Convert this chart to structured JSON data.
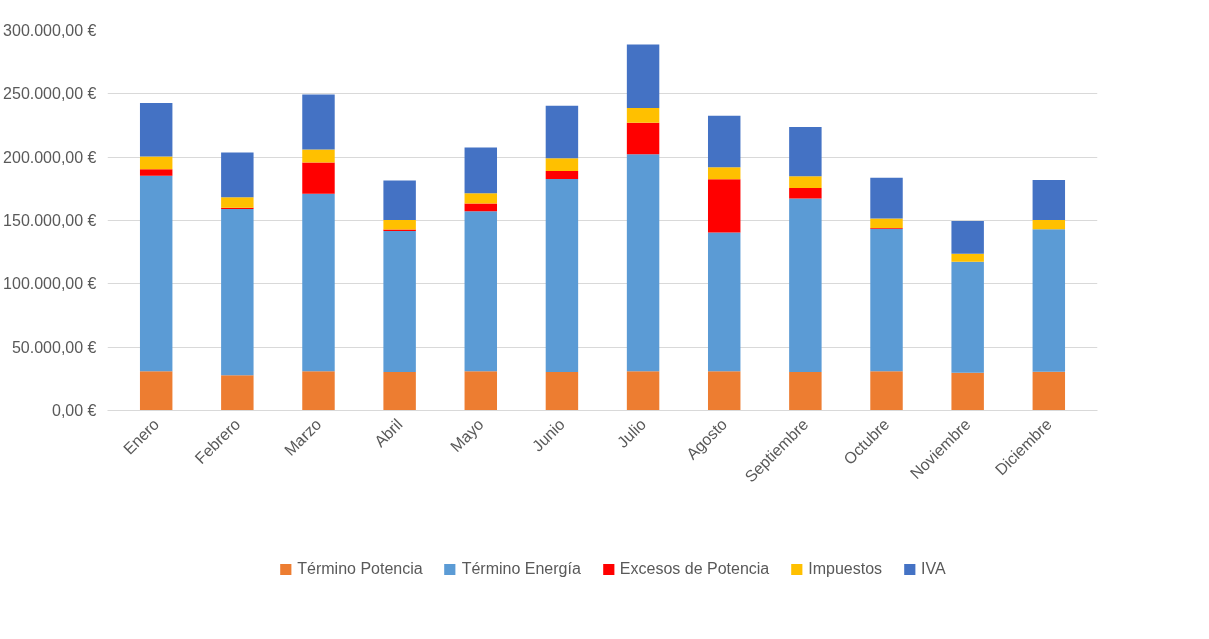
{
  "chart_data": {
    "type": "bar",
    "stacked": true,
    "categories": [
      "Enero",
      "Febrero",
      "Marzo",
      "Abril",
      "Mayo",
      "Junio",
      "Julio",
      "Agosto",
      "Septiembre",
      "Octubre",
      "Noviembre",
      "Diciembre"
    ],
    "series": [
      {
        "name": "Término Potencia",
        "color": "#ed7d31",
        "values": [
          31000,
          27800,
          31000,
          30300,
          31000,
          30300,
          31000,
          31000,
          30300,
          31000,
          29800,
          30500
        ]
      },
      {
        "name": "Término Energía",
        "color": "#5b9bd5",
        "values": [
          154400,
          131200,
          140200,
          111400,
          126300,
          152400,
          171300,
          109500,
          137000,
          112400,
          87600,
          112500
        ]
      },
      {
        "name": "Excesos de Potencia",
        "color": "#ff0000",
        "values": [
          5100,
          1000,
          24500,
          1200,
          6100,
          6400,
          24900,
          42000,
          8300,
          700,
          0,
          0
        ]
      },
      {
        "name": "Impuestos",
        "color": "#ffc000",
        "values": [
          10000,
          8300,
          10300,
          7400,
          8100,
          10000,
          11700,
          9500,
          9300,
          7400,
          6300,
          7300
        ]
      },
      {
        "name": "IVA",
        "color": "#4472c4",
        "values": [
          42300,
          35400,
          43400,
          31200,
          36200,
          41500,
          50100,
          40600,
          38900,
          32200,
          25900,
          31700
        ]
      }
    ],
    "ylim": [
      0,
      300000
    ],
    "yticks": [
      {
        "value": 0,
        "label": "0,00 €"
      },
      {
        "value": 50000,
        "label": "50.000,00 €"
      },
      {
        "value": 100000,
        "label": "100.000,00 €"
      },
      {
        "value": 150000,
        "label": "150.000,00 €"
      },
      {
        "value": 200000,
        "label": "200.000,00 €"
      },
      {
        "value": 250000,
        "label": "250.000,00 €"
      },
      {
        "value": 300000,
        "label": "300.000,00 €"
      }
    ],
    "grid": "y",
    "legend": "bottom"
  }
}
